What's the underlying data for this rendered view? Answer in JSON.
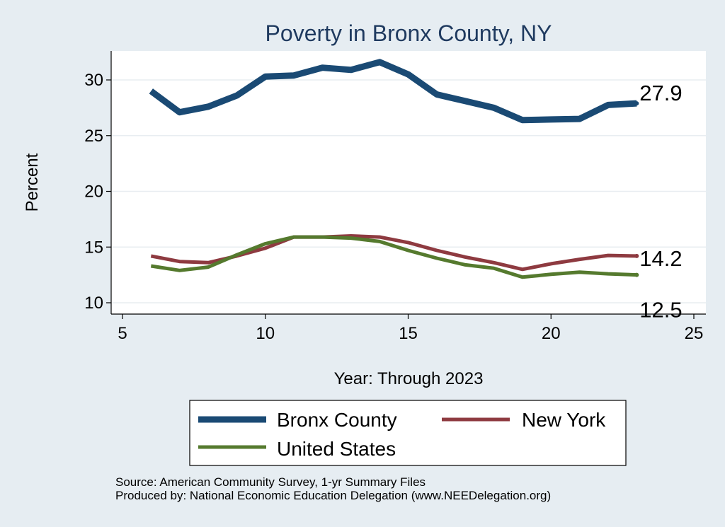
{
  "chart_data": {
    "type": "line",
    "title": "Poverty in Bronx County, NY",
    "xlabel": "Year: Through 2023",
    "ylabel": "Percent",
    "xlim": [
      5,
      25
    ],
    "ylim": [
      9.5,
      32.5
    ],
    "xticks": [
      5,
      10,
      15,
      20,
      25
    ],
    "yticks": [
      10,
      15,
      20,
      25,
      30
    ],
    "grid": true,
    "legend_position": "bottom",
    "series": [
      {
        "name": "Bronx County",
        "color": "#1a4a74",
        "end_label": "27.9",
        "x": [
          6,
          7,
          8,
          9,
          10,
          11,
          12,
          13,
          14,
          15,
          16,
          17,
          18,
          19,
          20,
          21,
          22,
          23
        ],
        "y": [
          29.0,
          27.1,
          27.6,
          28.6,
          30.3,
          30.4,
          31.1,
          30.9,
          31.6,
          30.5,
          28.7,
          28.1,
          27.5,
          26.4,
          26.45,
          26.5,
          27.75,
          27.9
        ]
      },
      {
        "name": "New York",
        "color": "#8e3a40",
        "end_label": "14.2",
        "x": [
          6,
          7,
          8,
          9,
          10,
          11,
          12,
          13,
          14,
          15,
          16,
          17,
          18,
          19,
          20,
          21,
          22,
          23
        ],
        "y": [
          14.2,
          13.7,
          13.6,
          14.2,
          14.9,
          15.9,
          15.9,
          16.0,
          15.9,
          15.4,
          14.7,
          14.1,
          13.6,
          13.0,
          13.5,
          13.9,
          14.25,
          14.2
        ]
      },
      {
        "name": "United States",
        "color": "#557a2e",
        "end_label": "12.5",
        "x": [
          6,
          7,
          8,
          9,
          10,
          11,
          12,
          13,
          14,
          15,
          16,
          17,
          18,
          19,
          20,
          21,
          22,
          23
        ],
        "y": [
          13.3,
          12.9,
          13.2,
          14.3,
          15.3,
          15.9,
          15.9,
          15.8,
          15.5,
          14.7,
          14.0,
          13.4,
          13.1,
          12.3,
          12.55,
          12.75,
          12.6,
          12.5
        ]
      }
    ]
  },
  "legend": {
    "items": [
      "Bronx County",
      "New York",
      "United States"
    ]
  },
  "source": {
    "line1": "Source: American Community Survey, 1-yr Summary Files",
    "line2": "Produced by: National Economic Education Delegation (www.NEEDelegation.org)"
  }
}
